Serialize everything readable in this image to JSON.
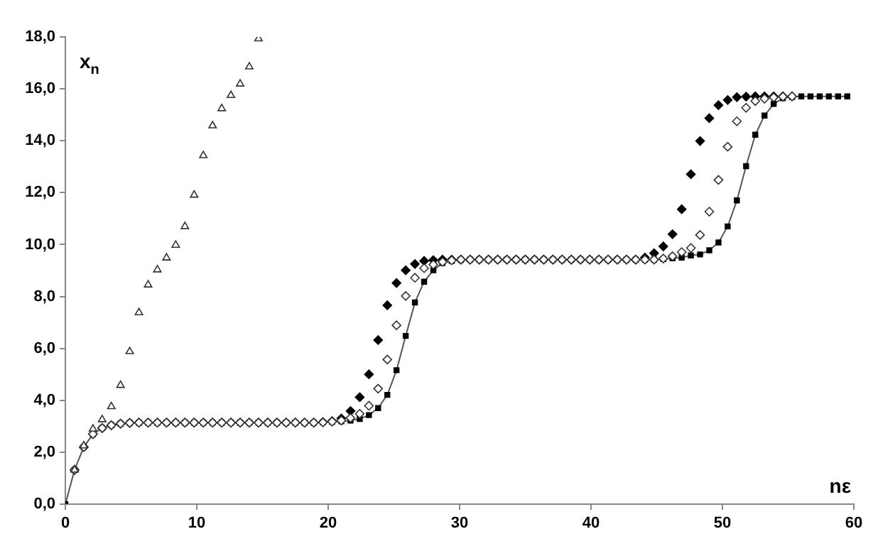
{
  "chart_data": {
    "type": "scatter",
    "xlabel": "nε",
    "ylabel": "x$_{n}$",
    "x": [
      0,
      0.7,
      1.4,
      2.1,
      2.8,
      3.5,
      4.2,
      4.9,
      5.6,
      6.3,
      7,
      7.7,
      8.4,
      9.1,
      9.8,
      10.5,
      11.2,
      11.9,
      12.6,
      13.3,
      14,
      14.7,
      15.4,
      16.1,
      16.8,
      17.5,
      18.2,
      18.9,
      19.6,
      20.3,
      21,
      21.7,
      22.4,
      23.1,
      23.8,
      24.5,
      25.2,
      25.9,
      26.6,
      27.3,
      28,
      28.7,
      29.4,
      30.1,
      30.8,
      31.5,
      32.2,
      32.9,
      33.6,
      34.3,
      35,
      35.7,
      36.4,
      37.1,
      37.8,
      38.5,
      39.2,
      39.9,
      40.6,
      41.3,
      42,
      42.7,
      43.4,
      44.1,
      44.8,
      45.5,
      46.2,
      46.9,
      47.6,
      48.3,
      49,
      49.7,
      50.4,
      51.1,
      51.8,
      52.5,
      53.2,
      53.9,
      54.6,
      55.3,
      56,
      56.7,
      57.4,
      58.1,
      58.8,
      59.5
    ],
    "series": [
      {
        "type": "line",
        "color": "#000000",
        "marker": "square",
        "values": [
          0,
          1.32,
          2.2,
          2.7,
          2.93,
          3.04,
          3.1,
          3.13,
          3.14,
          3.14,
          3.14,
          3.14,
          3.14,
          3.14,
          3.14,
          3.14,
          3.14,
          3.14,
          3.14,
          3.14,
          3.14,
          3.14,
          3.14,
          3.14,
          3.14,
          3.14,
          3.14,
          3.14,
          3.15,
          3.17,
          3.19,
          3.22,
          3.28,
          3.43,
          3.7,
          4.21,
          5.16,
          6.48,
          7.77,
          8.57,
          9.01,
          9.29,
          9.37,
          9.41,
          9.42,
          9.42,
          9.42,
          9.42,
          9.42,
          9.42,
          9.42,
          9.42,
          9.42,
          9.42,
          9.42,
          9.42,
          9.42,
          9.42,
          9.42,
          9.42,
          9.42,
          9.42,
          9.42,
          9.42,
          9.42,
          9.44,
          9.47,
          9.5,
          9.58,
          9.62,
          9.78,
          10.08,
          10.7,
          11.7,
          13.02,
          14.23,
          14.97,
          15.42,
          15.64,
          15.69,
          15.71,
          15.71,
          15.71,
          15.71,
          15.71,
          15.71
        ]
      },
      {
        "color": "#000000",
        "marker": "diamond",
        "values": [
          null,
          1.32,
          2.2,
          2.7,
          2.93,
          3.04,
          3.1,
          3.13,
          3.14,
          3.14,
          3.14,
          3.14,
          3.14,
          3.14,
          3.14,
          3.14,
          3.14,
          3.14,
          3.14,
          3.14,
          3.14,
          3.14,
          3.14,
          3.14,
          3.14,
          3.14,
          3.14,
          3.14,
          3.16,
          3.2,
          3.3,
          3.59,
          4.12,
          5.0,
          6.32,
          7.66,
          8.52,
          9.01,
          9.25,
          9.37,
          9.4,
          9.42,
          9.42,
          9.42,
          9.42,
          9.42,
          9.42,
          9.42,
          9.42,
          9.42,
          9.42,
          9.42,
          9.42,
          9.42,
          9.42,
          9.42,
          9.42,
          9.42,
          9.42,
          9.42,
          9.42,
          9.42,
          9.42,
          9.5,
          9.67,
          9.93,
          10.4,
          11.36,
          12.71,
          13.99,
          14.87,
          15.37,
          15.57,
          15.68,
          15.7,
          15.71,
          15.71,
          15.71,
          15.71,
          15.71,
          null,
          null,
          null,
          null,
          null,
          null
        ]
      },
      {
        "color": "#ffffff",
        "marker": "diamond",
        "values": [
          null,
          1.32,
          2.2,
          2.7,
          2.93,
          3.04,
          3.1,
          3.13,
          3.14,
          3.14,
          3.14,
          3.14,
          3.14,
          3.14,
          3.14,
          3.14,
          3.14,
          3.14,
          3.14,
          3.14,
          3.14,
          3.14,
          3.14,
          3.14,
          3.14,
          3.14,
          3.14,
          3.14,
          3.15,
          3.18,
          3.22,
          3.32,
          3.48,
          3.79,
          4.45,
          5.57,
          6.89,
          8.02,
          8.72,
          9.09,
          9.23,
          9.33,
          9.39,
          9.42,
          9.42,
          9.42,
          9.42,
          9.42,
          9.42,
          9.42,
          9.42,
          9.42,
          9.42,
          9.42,
          9.42,
          9.42,
          9.42,
          9.42,
          9.42,
          9.42,
          9.42,
          9.42,
          9.42,
          9.42,
          9.42,
          9.46,
          9.55,
          9.71,
          9.87,
          10.37,
          11.27,
          12.49,
          13.77,
          14.75,
          15.27,
          15.53,
          15.62,
          15.67,
          15.7,
          15.71,
          null,
          null,
          null,
          null,
          null,
          null
        ]
      },
      {
        "color": "#ffffff",
        "marker": "triangle",
        "values": [
          null,
          1.32,
          2.25,
          2.9,
          3.26,
          3.76,
          4.58,
          5.88,
          7.38,
          8.45,
          9.03,
          9.49,
          9.98,
          10.7,
          11.91,
          13.43,
          14.58,
          15.24,
          15.75,
          16.19,
          16.85,
          17.93,
          null,
          null,
          null,
          null,
          null,
          null,
          null,
          null,
          null,
          null,
          null,
          null,
          null,
          null,
          null,
          null,
          null,
          null,
          null,
          null,
          null,
          null,
          null,
          null,
          null,
          null,
          null,
          null,
          null,
          null,
          null,
          null,
          null,
          null,
          null,
          null,
          null,
          null,
          null,
          null,
          null,
          null,
          null,
          null,
          null,
          null,
          null,
          null,
          null,
          null,
          null,
          null,
          null,
          null,
          null,
          null,
          null,
          null,
          null,
          null,
          null,
          null,
          null,
          null
        ]
      }
    ],
    "xlim": [
      0,
      60
    ],
    "xticks": [
      0,
      10,
      20,
      30,
      40,
      50,
      60
    ],
    "ylim": [
      0,
      18
    ],
    "yticks": [
      {
        "value": 0,
        "label": "0,0"
      },
      {
        "value": 2,
        "label": "2,0"
      },
      {
        "value": 4,
        "label": "4,0"
      },
      {
        "value": 6,
        "label": "6,0"
      },
      {
        "value": 8,
        "label": "8,0"
      },
      {
        "value": 10,
        "label": "10,0"
      },
      {
        "value": 12,
        "label": "12,0"
      },
      {
        "value": 14,
        "label": "14,0"
      },
      {
        "value": 16,
        "label": "16,0"
      },
      {
        "value": 18,
        "label": "18,0"
      }
    ],
    "grid": false,
    "legend": false
  }
}
